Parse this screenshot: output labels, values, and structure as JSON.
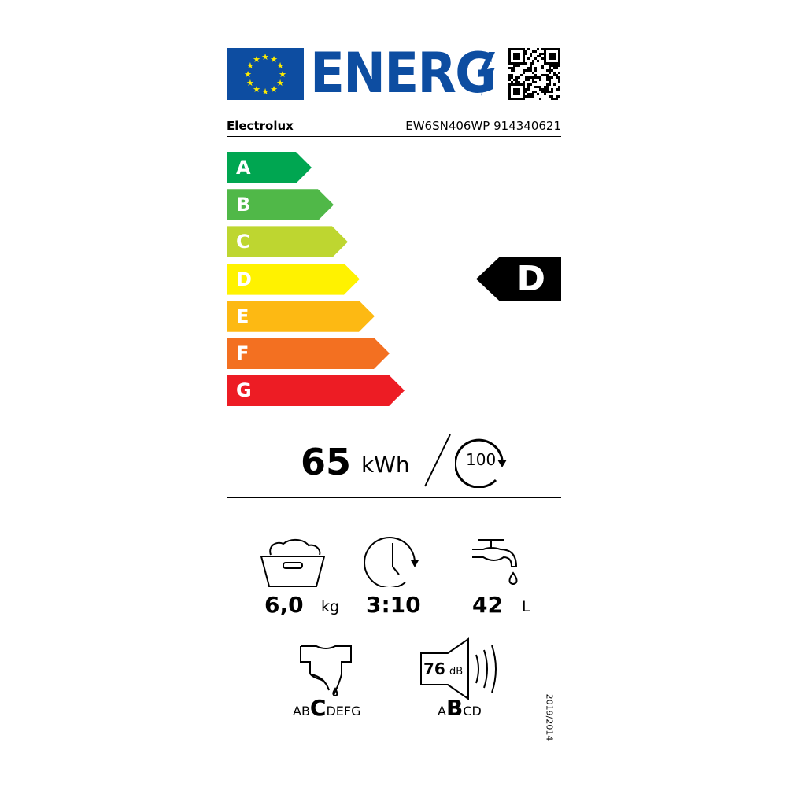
{
  "header": {
    "logo_text": "ENERG",
    "brand": "Electrolux",
    "model": "EW6SN406WP 914340621",
    "flag_color": "#0d4da1",
    "star_color": "#ffed00",
    "qr_icon": "qr-code-icon"
  },
  "scale": [
    {
      "label": "A",
      "color": "#00a651"
    },
    {
      "label": "B",
      "color": "#50b848"
    },
    {
      "label": "C",
      "color": "#bed630"
    },
    {
      "label": "D",
      "color": "#fff200"
    },
    {
      "label": "E",
      "color": "#fdb913"
    },
    {
      "label": "F",
      "color": "#f37021"
    },
    {
      "label": "G",
      "color": "#ed1c24"
    }
  ],
  "rating": "D",
  "energy": {
    "value": "65",
    "unit": "kWh",
    "cycles": "100"
  },
  "capacity": {
    "value": "6,0",
    "unit": "kg"
  },
  "duration": {
    "value": "3:10"
  },
  "water": {
    "value": "42",
    "unit": "L"
  },
  "spin_class": {
    "before": "AB",
    "selected": "C",
    "after": "DEFG"
  },
  "noise": {
    "value": "76",
    "unit": "dB",
    "before": "A",
    "selected": "B",
    "after": "CD"
  },
  "regulation": "2019/2014"
}
